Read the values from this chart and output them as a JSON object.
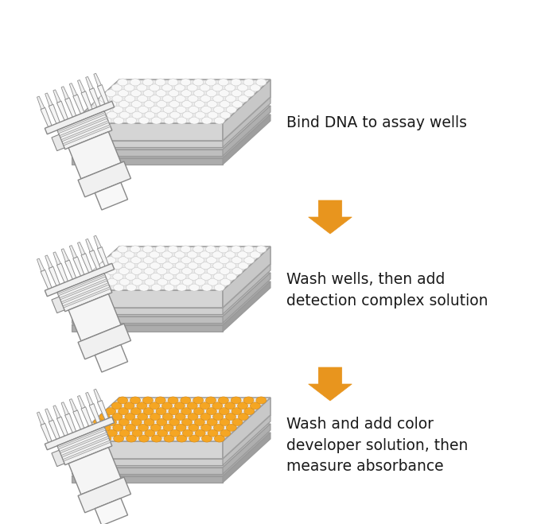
{
  "background_color": "#ffffff",
  "arrow_color": "#E8951E",
  "text_color": "#1a1a1a",
  "plate_top_facecolor": "#ebebeb",
  "plate_top_edgecolor": "#a0a0a0",
  "plate_front_facecolor": "#d5d5d5",
  "plate_right_facecolor": "#c8c8c8",
  "plate_layer_colors": [
    "#d0d0d0",
    "#bebebe",
    "#acacac"
  ],
  "plate_layer_edge": "#999999",
  "well_color_white": "#f8f8f8",
  "well_edge_white": "#cccccc",
  "well_color_orange": "#F5A623",
  "well_edge_orange": "#d4891a",
  "pipette_body_color": "#f2f2f2",
  "pipette_edge_color": "#8a8a8a",
  "step1_text": "Bind DNA to assay wells",
  "step2_text": "Wash wells, then add\ndetection complex solution",
  "step3_text": "Wash and add color\ndeveloper solution, then\nmeasure absorbance",
  "figsize": [
    6.75,
    6.59
  ],
  "dpi": 100
}
